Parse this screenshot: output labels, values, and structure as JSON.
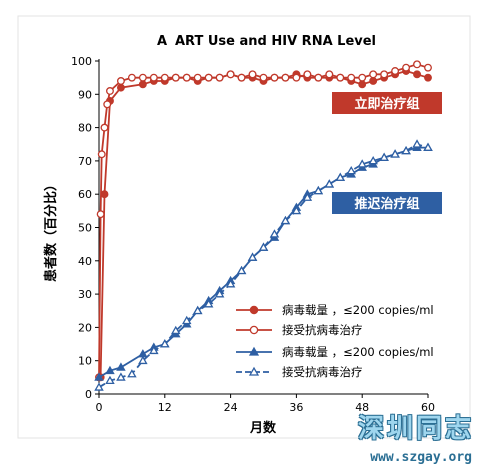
{
  "chart_data": {
    "type": "line",
    "panel_letter": "A",
    "title": "ART Use and HIV RNA Level",
    "xlabel": "月数",
    "ylabel": "患者数（百分比）",
    "xlim": [
      0,
      60
    ],
    "ylim": [
      0,
      100
    ],
    "xticks": [
      0,
      12,
      24,
      36,
      48,
      60
    ],
    "yticks": [
      0,
      10,
      20,
      30,
      40,
      50,
      60,
      70,
      80,
      90,
      100
    ],
    "group_labels": [
      {
        "text": "立即治疗组",
        "color": "#c0392b"
      },
      {
        "text": "推迟治疗组",
        "color": "#2e5fa3"
      }
    ],
    "series": [
      {
        "name": "病毒载量 ，≤200 copies/ml",
        "color": "#c0392b",
        "marker": "filled-circle",
        "dash": false,
        "group": 0,
        "x": [
          0.3,
          1,
          2,
          4,
          8,
          10,
          12,
          14,
          16,
          18,
          20,
          22,
          24,
          26,
          28,
          30,
          32,
          34,
          36,
          38,
          40,
          42,
          44,
          46,
          48,
          50,
          52,
          54,
          56,
          58,
          60
        ],
        "y": [
          5,
          60,
          88,
          92,
          93,
          94,
          94,
          95,
          95,
          94,
          95,
          95,
          96,
          95,
          95,
          94,
          95,
          95,
          96,
          95,
          95,
          95,
          95,
          94,
          93,
          94,
          95,
          96,
          97,
          96,
          95
        ]
      },
      {
        "name": "接受抗病毒治疗",
        "color": "#c0392b",
        "marker": "open-circle",
        "dash": false,
        "group": 0,
        "x": [
          0,
          0.3,
          0.5,
          1,
          1.5,
          2,
          4,
          6,
          8,
          10,
          12,
          14,
          16,
          18,
          20,
          22,
          24,
          26,
          28,
          30,
          32,
          34,
          36,
          38,
          40,
          42,
          44,
          46,
          48,
          50,
          52,
          54,
          56,
          58,
          60
        ],
        "y": [
          5,
          54,
          72,
          80,
          87,
          91,
          94,
          95,
          95,
          95,
          95,
          95,
          95,
          95,
          95,
          95,
          96,
          95,
          96,
          95,
          95,
          95,
          95,
          96,
          95,
          96,
          95,
          95,
          95,
          96,
          96,
          97,
          98,
          99,
          98
        ]
      },
      {
        "name": "病毒载量 ，≤200 copies/ml",
        "color": "#2e5fa3",
        "marker": "filled-triangle",
        "dash": false,
        "group": 1,
        "x": [
          0,
          2,
          4,
          8,
          10,
          12,
          14,
          16,
          18,
          20,
          22,
          24,
          26,
          28,
          30,
          32,
          34,
          36,
          38,
          40,
          42,
          44,
          46,
          48,
          50,
          52,
          54,
          56,
          58,
          60
        ],
        "y": [
          5,
          7,
          8,
          12,
          14,
          15,
          18,
          21,
          25,
          28,
          31,
          34,
          37,
          41,
          44,
          47,
          52,
          56,
          60,
          61,
          63,
          65,
          66,
          68,
          69,
          71,
          72,
          73,
          74,
          74
        ]
      },
      {
        "name": "接受抗病毒治疗",
        "color": "#2e5fa3",
        "marker": "open-triangle",
        "dash": true,
        "group": 1,
        "x": [
          0,
          2,
          4,
          6,
          8,
          10,
          12,
          14,
          16,
          18,
          20,
          22,
          24,
          26,
          28,
          30,
          32,
          34,
          36,
          38,
          40,
          42,
          44,
          46,
          48,
          50,
          52,
          54,
          56,
          58,
          60
        ],
        "y": [
          2,
          4,
          5,
          6,
          10,
          13,
          15,
          19,
          22,
          25,
          27,
          30,
          33,
          37,
          41,
          44,
          48,
          52,
          55,
          59,
          61,
          63,
          65,
          67,
          69,
          70,
          71,
          72,
          73,
          75,
          74
        ]
      }
    ]
  },
  "watermark": {
    "cn": "深圳同志",
    "url": "www.szgay.org"
  }
}
